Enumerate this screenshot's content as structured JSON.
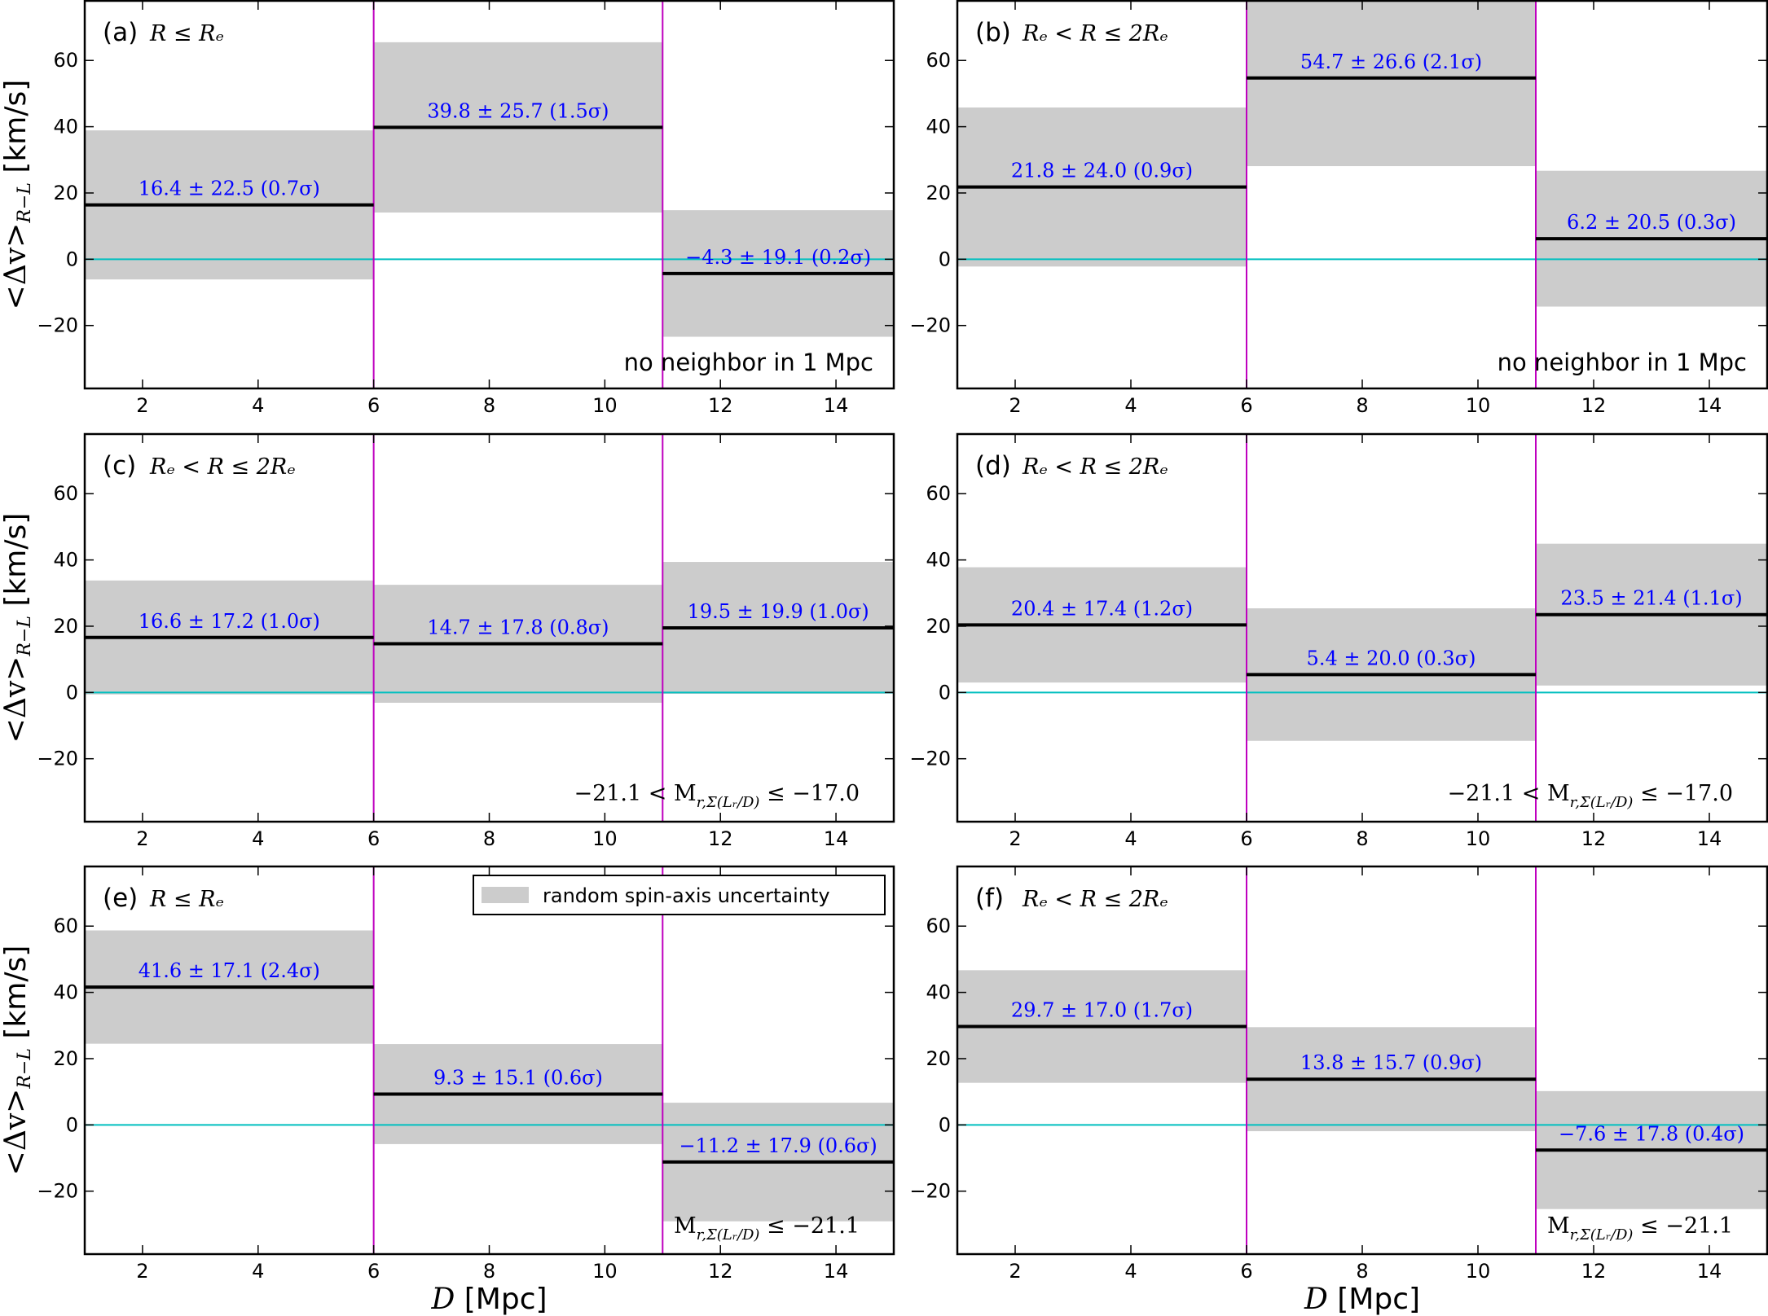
{
  "chart_data": [
    {
      "panel": "(a)",
      "condition": "R ≤ Rₑ",
      "type": "bar",
      "bins": [
        [
          1,
          6
        ],
        [
          6,
          11
        ],
        [
          11,
          15
        ]
      ],
      "values": [
        16.4,
        39.8,
        -4.3
      ],
      "errors": [
        22.5,
        25.7,
        19.1
      ],
      "labels": [
        "16.4 ± 22.5 (0.7σ)",
        "39.8 ± 25.7 (1.5σ)",
        "−4.3 ± 19.1 (0.2σ)"
      ],
      "annotation": {
        "plain": "no neighbor in 1 Mpc"
      }
    },
    {
      "panel": "(b)",
      "condition": "Rₑ < R ≤ 2Rₑ",
      "type": "bar",
      "bins": [
        [
          1,
          6
        ],
        [
          6,
          11
        ],
        [
          11,
          15
        ]
      ],
      "values": [
        21.8,
        54.7,
        6.2
      ],
      "errors": [
        24.0,
        26.6,
        20.5
      ],
      "labels": [
        "21.8 ± 24.0 (0.9σ)",
        "54.7 ± 26.6 (2.1σ)",
        "6.2 ± 20.5 (0.3σ)"
      ],
      "annotation": {
        "plain": "no neighbor in 1 Mpc"
      }
    },
    {
      "panel": "(c)",
      "condition": "Rₑ < R ≤ 2Rₑ",
      "type": "bar",
      "bins": [
        [
          1,
          6
        ],
        [
          6,
          11
        ],
        [
          11,
          15
        ]
      ],
      "values": [
        16.6,
        14.7,
        19.5
      ],
      "errors": [
        17.2,
        17.8,
        19.9
      ],
      "labels": [
        "16.6 ± 17.2 (1.0σ)",
        "14.7 ± 17.8 (0.8σ)",
        "19.5 ± 19.9 (1.0σ)"
      ],
      "annotation": {
        "pre": "−21.1 < M",
        "sub": "r,Σ(Lᵣ/D)",
        "post": " ≤ −17.0"
      }
    },
    {
      "panel": "(d)",
      "condition": "Rₑ < R ≤ 2Rₑ",
      "type": "bar",
      "bins": [
        [
          1,
          6
        ],
        [
          6,
          11
        ],
        [
          11,
          15
        ]
      ],
      "values": [
        20.4,
        5.4,
        23.5
      ],
      "errors": [
        17.4,
        20.0,
        21.4
      ],
      "labels": [
        "20.4 ± 17.4 (1.2σ)",
        "5.4 ± 20.0 (0.3σ)",
        "23.5 ± 21.4 (1.1σ)"
      ],
      "annotation": {
        "pre": "−21.1 < M",
        "sub": "r,Σ(Lᵣ/D)",
        "post": " ≤ −17.0"
      }
    },
    {
      "panel": "(e)",
      "condition": "R ≤ Rₑ",
      "type": "bar",
      "bins": [
        [
          1,
          6
        ],
        [
          6,
          11
        ],
        [
          11,
          15
        ]
      ],
      "values": [
        41.6,
        9.3,
        -11.2
      ],
      "errors": [
        17.1,
        15.1,
        17.9
      ],
      "labels": [
        "41.6 ± 17.1 (2.4σ)",
        "9.3 ± 15.1 (0.6σ)",
        "−11.2 ± 17.9 (0.6σ)"
      ],
      "annotation": {
        "pre": "M",
        "sub": "r,Σ(Lᵣ/D)",
        "post": " ≤ −21.1"
      },
      "legend": "random spin-axis uncertainty"
    },
    {
      "panel": "(f)",
      "condition": "Rₑ < R ≤ 2Rₑ",
      "type": "bar",
      "bins": [
        [
          1,
          6
        ],
        [
          6,
          11
        ],
        [
          11,
          15
        ]
      ],
      "values": [
        29.7,
        13.8,
        -7.6
      ],
      "errors": [
        17.0,
        15.7,
        17.8
      ],
      "labels": [
        "29.7 ± 17.0 (1.7σ)",
        "13.8 ± 15.7 (0.9σ)",
        "−7.6 ± 17.8 (0.4σ)"
      ],
      "annotation": {
        "pre": "M",
        "sub": "r,Σ(Lᵣ/D)",
        "post": " ≤ −21.1"
      }
    }
  ],
  "axes": {
    "xlim": [
      1,
      15
    ],
    "ylim": [
      -39,
      78
    ],
    "xticks": [
      2,
      4,
      6,
      8,
      10,
      12,
      14
    ],
    "yticks": [
      -20,
      0,
      20,
      40,
      60
    ],
    "xtick_labels": [
      "2",
      "4",
      "6",
      "8",
      "10",
      "12",
      "14"
    ],
    "ytick_labels": [
      "−20",
      "0",
      "20",
      "40",
      "60"
    ],
    "bin_edges": [
      6,
      11
    ],
    "zero_line": 0,
    "ylabel": {
      "pre": "<Δv>",
      "sub": "R−L",
      "post": " [km/s]"
    },
    "xlabel": {
      "var": "D",
      "unit": " [Mpc]"
    }
  },
  "colors": {
    "band": "#cccccc",
    "mean": "#000000",
    "edge": "#bf00bf",
    "zero": "#00bfbf",
    "label": "#0000ff"
  }
}
